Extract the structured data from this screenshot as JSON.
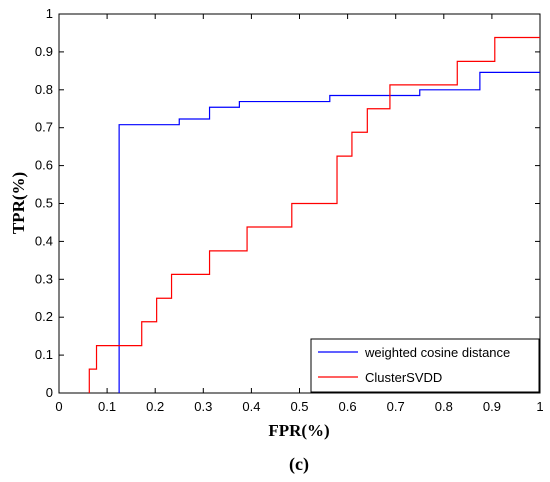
{
  "chart_data": {
    "type": "line",
    "xlabel": "FPR(%)",
    "ylabel": "TPR(%)",
    "caption": "(c)",
    "xlim": [
      0,
      1
    ],
    "ylim": [
      0,
      1
    ],
    "x_ticks": [
      "0",
      "0.1",
      "0.2",
      "0.3",
      "0.4",
      "0.5",
      "0.6",
      "0.7",
      "0.8",
      "0.9",
      "1"
    ],
    "y_ticks": [
      "0",
      "0.1",
      "0.2",
      "0.3",
      "0.4",
      "0.5",
      "0.6",
      "0.7",
      "0.8",
      "0.9",
      "1"
    ],
    "grid": false,
    "legend_position": "bottom-right",
    "series": [
      {
        "name": "weighted cosine distance",
        "color": "#0000ff",
        "step": true,
        "points": [
          [
            0.125,
            0
          ],
          [
            0.125,
            0.708
          ],
          [
            0.25,
            0.708
          ],
          [
            0.25,
            0.723
          ],
          [
            0.313,
            0.723
          ],
          [
            0.313,
            0.754
          ],
          [
            0.375,
            0.754
          ],
          [
            0.375,
            0.769
          ],
          [
            0.563,
            0.769
          ],
          [
            0.563,
            0.785
          ],
          [
            0.75,
            0.785
          ],
          [
            0.75,
            0.8
          ],
          [
            0.875,
            0.8
          ],
          [
            0.875,
            0.846
          ],
          [
            1.0,
            0.846
          ]
        ]
      },
      {
        "name": "ClusterSVDD",
        "color": "#ff0000",
        "step": true,
        "points": [
          [
            0.063,
            0
          ],
          [
            0.063,
            0.063
          ],
          [
            0.078,
            0.063
          ],
          [
            0.078,
            0.125
          ],
          [
            0.172,
            0.125
          ],
          [
            0.172,
            0.188
          ],
          [
            0.203,
            0.188
          ],
          [
            0.203,
            0.25
          ],
          [
            0.234,
            0.25
          ],
          [
            0.234,
            0.313
          ],
          [
            0.313,
            0.313
          ],
          [
            0.313,
            0.375
          ],
          [
            0.391,
            0.375
          ],
          [
            0.391,
            0.438
          ],
          [
            0.484,
            0.438
          ],
          [
            0.484,
            0.5
          ],
          [
            0.578,
            0.5
          ],
          [
            0.578,
            0.625
          ],
          [
            0.609,
            0.625
          ],
          [
            0.609,
            0.688
          ],
          [
            0.641,
            0.688
          ],
          [
            0.641,
            0.75
          ],
          [
            0.688,
            0.75
          ],
          [
            0.688,
            0.813
          ],
          [
            0.828,
            0.813
          ],
          [
            0.828,
            0.875
          ],
          [
            0.906,
            0.875
          ],
          [
            0.906,
            0.938
          ],
          [
            1.0,
            0.938
          ]
        ]
      }
    ]
  }
}
